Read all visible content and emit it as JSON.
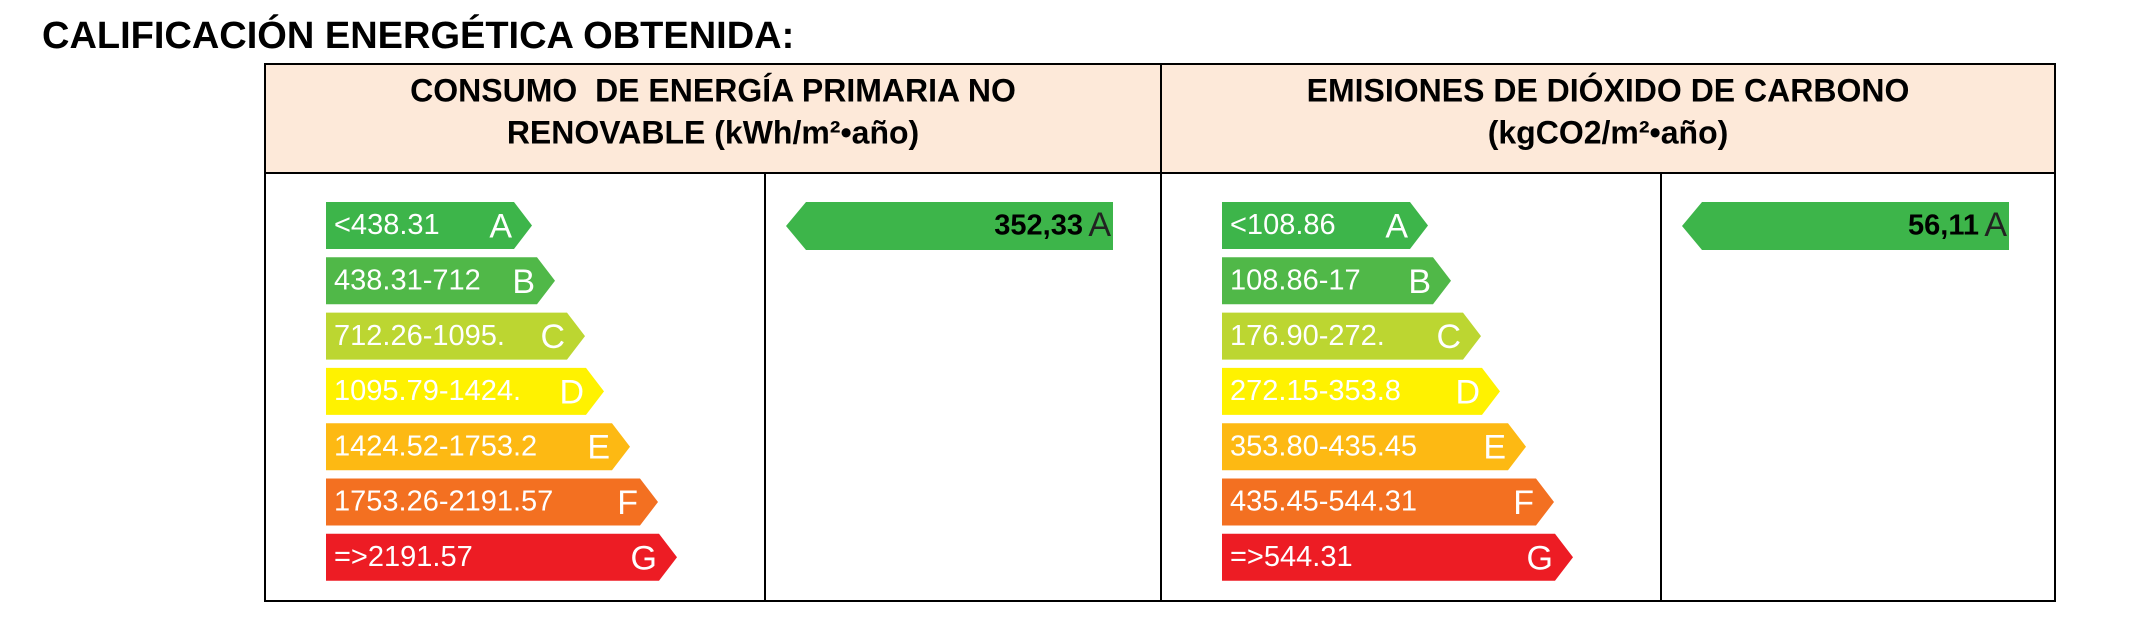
{
  "title": "CALIFICACIÓN ENERGÉTICA OBTENIDA:",
  "sections": [
    {
      "header": [
        "CONSUMO  DE ENERGÍA PRIMARIA NO",
        "RENOVABLE (kWh/m²•año)"
      ],
      "scale": [
        {
          "range": "<438.31",
          "letter": "A",
          "color": "#3db54a"
        },
        {
          "range": "438.31-712",
          "letter": "B",
          "color": "#50b848"
        },
        {
          "range": "712.26-1095.",
          "letter": "C",
          "color": "#bcd631"
        },
        {
          "range": "1095.79-1424.",
          "letter": "D",
          "color": "#fff200"
        },
        {
          "range": "1424.52-1753.2",
          "letter": "E",
          "color": "#fdb913"
        },
        {
          "range": "1753.26-2191.57",
          "letter": "F",
          "color": "#f37021"
        },
        {
          "range": "=>2191.57",
          "letter": "G",
          "color": "#ed1c24"
        }
      ],
      "result": {
        "value": "352,33",
        "letter": "A",
        "color": "#3db54a"
      }
    },
    {
      "header": [
        "EMISIONES DE DIÓXIDO DE CARBONO",
        "(kgCO2/m²•año)"
      ],
      "scale": [
        {
          "range": "<108.86",
          "letter": "A",
          "color": "#3db54a"
        },
        {
          "range": "108.86-17",
          "letter": "B",
          "color": "#50b848"
        },
        {
          "range": "176.90-272.",
          "letter": "C",
          "color": "#bcd631"
        },
        {
          "range": "272.15-353.8",
          "letter": "D",
          "color": "#fff200"
        },
        {
          "range": "353.80-435.45",
          "letter": "E",
          "color": "#fdb913"
        },
        {
          "range": "435.45-544.31",
          "letter": "F",
          "color": "#f37021"
        },
        {
          "range": "=>544.31",
          "letter": "G",
          "color": "#ed1c24"
        }
      ],
      "result": {
        "value": "56,11",
        "letter": "A",
        "color": "#3db54a"
      }
    }
  ]
}
